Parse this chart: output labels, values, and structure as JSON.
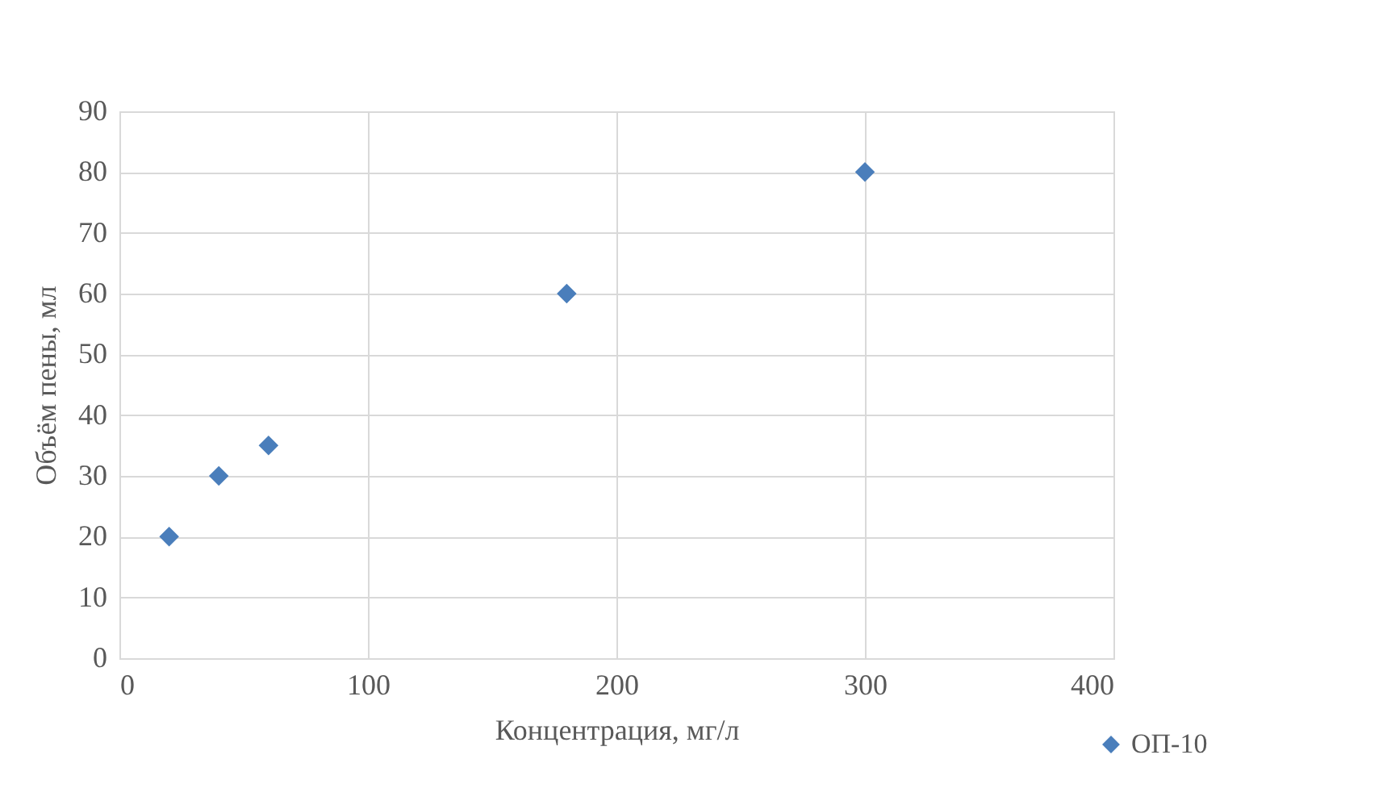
{
  "chart_data": {
    "type": "scatter",
    "xlabel": "Концентрация, мг/л",
    "ylabel": "Объём пены, мл",
    "x": [
      20,
      40,
      60,
      180,
      300
    ],
    "series": [
      {
        "name": "ОП-10",
        "color": "#4a7ebb",
        "values": [
          20,
          30,
          35,
          60,
          80
        ]
      }
    ],
    "xlim": [
      0,
      400
    ],
    "xticks": [
      0,
      100,
      200,
      300,
      400
    ],
    "ylim": [
      0,
      90
    ],
    "yticks": [
      0,
      10,
      20,
      30,
      40,
      50,
      60,
      70,
      80,
      90
    ],
    "grid": true,
    "legend": "bottom right",
    "marker": "diamond"
  }
}
